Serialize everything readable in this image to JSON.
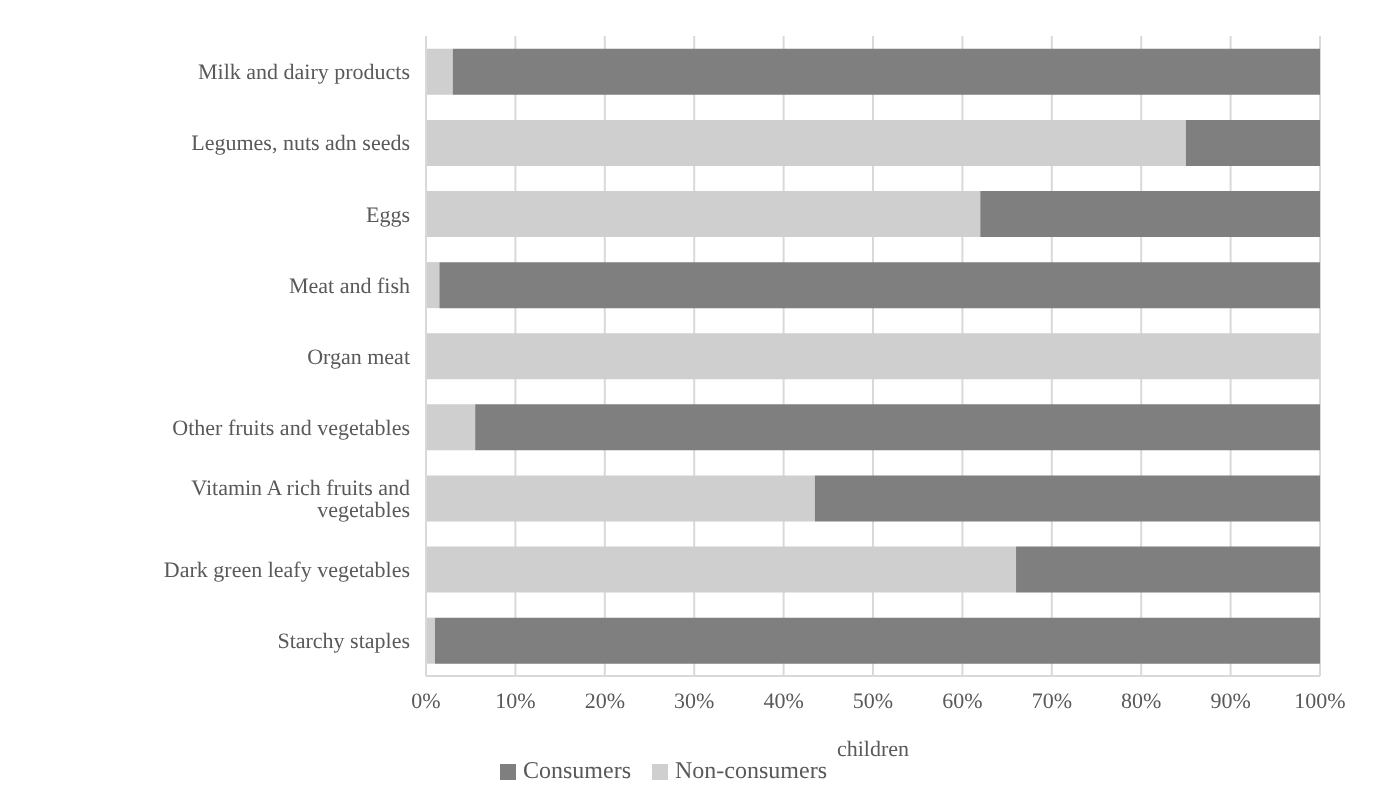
{
  "chart_data": {
    "type": "bar",
    "orientation": "horizontal",
    "stacked": true,
    "xlabel": "children",
    "categories": [
      "Milk and dairy products",
      "Legumes, nuts adn seeds",
      "Eggs",
      "Meat and fish",
      "Organ meat",
      "Other fruits and vegetables",
      "Vitamin A rich fruits and vegetables",
      "Dark green leafy vegetables",
      "Starchy staples"
    ],
    "series": [
      {
        "name": "Non-consumers",
        "color": "#d0cfcf",
        "values": [
          3,
          85,
          62,
          1.5,
          100,
          5.5,
          43.5,
          66,
          1
        ]
      },
      {
        "name": "Consumers",
        "color": "#7f7f7f",
        "values": [
          97,
          15,
          38,
          98.5,
          0,
          94.5,
          56.5,
          34,
          99
        ]
      }
    ],
    "xlim": [
      0,
      100
    ],
    "xticks": [
      {
        "value": 0,
        "label": "0%"
      },
      {
        "value": 10,
        "label": "10%"
      },
      {
        "value": 20,
        "label": "20%"
      },
      {
        "value": 30,
        "label": "30%"
      },
      {
        "value": 40,
        "label": "40%"
      },
      {
        "value": 50,
        "label": "50%"
      },
      {
        "value": 60,
        "label": "60%"
      },
      {
        "value": 70,
        "label": "70%"
      },
      {
        "value": 80,
        "label": "80%"
      },
      {
        "value": 90,
        "label": "90%"
      },
      {
        "value": 100,
        "label": "100%"
      }
    ],
    "grid": "x",
    "legend": "bottom"
  }
}
